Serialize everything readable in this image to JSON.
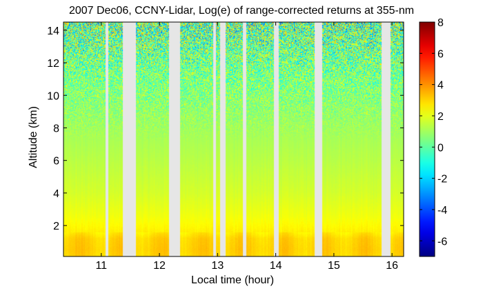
{
  "chart_data": {
    "type": "heatmap",
    "title": "2007 Dec06, CCNY-Lidar, Log(e) of range-corrected returns at 355-nm",
    "xlabel": "Local time (hour)",
    "ylabel": "Altitude (km)",
    "xlim": [
      10.35,
      16.2
    ],
    "ylim": [
      0.1,
      14.5
    ],
    "x_ticks": [
      11,
      12,
      13,
      14,
      15,
      16
    ],
    "y_ticks": [
      2,
      4,
      6,
      8,
      10,
      12,
      14
    ],
    "colorbar": {
      "range": [
        -7,
        8
      ],
      "ticks": [
        -6,
        -4,
        -2,
        0,
        2,
        4,
        6,
        8
      ],
      "colormap": "jet"
    },
    "gaps_hours": [
      [
        11.07,
        11.12
      ],
      [
        11.37,
        11.6
      ],
      [
        12.17,
        12.35
      ],
      [
        12.92,
        12.97
      ],
      [
        13.04,
        13.14
      ],
      [
        13.44,
        13.5
      ],
      [
        13.97,
        14.05
      ],
      [
        14.67,
        14.8
      ],
      [
        15.82,
        15.98
      ]
    ],
    "profile": {
      "altitude_km": [
        0.1,
        0.5,
        1.2,
        1.6,
        2.5,
        4.0,
        6.0,
        8.0,
        10.0,
        12.0,
        14.5
      ],
      "value": [
        3.0,
        3.1,
        3.0,
        2.6,
        2.2,
        1.75,
        1.35,
        1.0,
        0.6,
        0.3,
        0.1
      ]
    }
  }
}
